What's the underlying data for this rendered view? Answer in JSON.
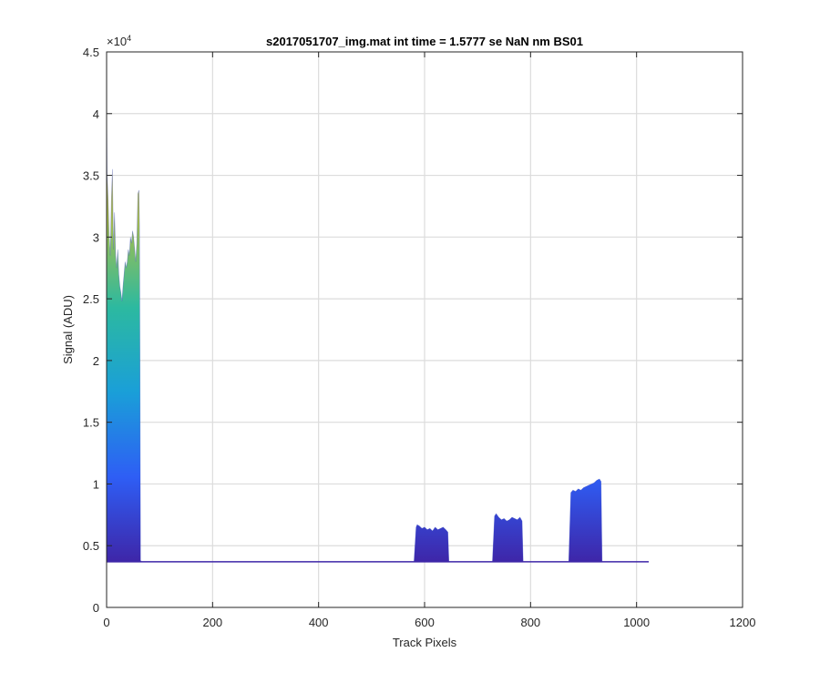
{
  "chart_data": {
    "type": "area",
    "title": "s2017051707_img.mat int time = 1.5777 se  NaN nm BS01",
    "xlabel": "Track Pixels",
    "ylabel": "Signal (ADU)",
    "xlim": [
      0,
      1200
    ],
    "ylim": [
      0,
      45000
    ],
    "x_ticks": [
      0,
      200,
      400,
      600,
      800,
      1000,
      1200
    ],
    "y_ticks": [
      0,
      5000,
      10000,
      15000,
      20000,
      25000,
      30000,
      35000,
      40000,
      45000
    ],
    "x_tick_labels": [
      "0",
      "200",
      "400",
      "600",
      "800",
      "1000",
      "1200"
    ],
    "y_tick_labels": [
      "0",
      "0.5",
      "1",
      "1.5",
      "2",
      "2.5",
      "3",
      "3.5",
      "4",
      "4.5"
    ],
    "y_exponent_label": "×10",
    "y_exponent_power": "4",
    "grid": true,
    "colormap": [
      "#3e26a8",
      "#2e5ef5",
      "#1a9fd8",
      "#2cb9a0",
      "#a5be4c",
      "#dbbb3a"
    ],
    "series": [
      {
        "x": [
          0,
          1,
          3,
          5,
          7,
          9,
          11,
          13,
          15,
          17,
          19,
          21,
          23,
          25,
          27,
          29,
          31,
          33,
          35,
          37,
          39,
          41,
          43,
          45,
          47,
          49,
          51,
          53,
          55,
          57,
          59,
          61,
          62,
          63,
          64,
          66,
          70,
          100,
          200,
          300,
          400,
          500,
          580,
          584,
          586,
          590,
          595,
          600,
          605,
          610,
          615,
          620,
          625,
          630,
          635,
          640,
          644,
          646,
          650,
          700,
          728,
          732,
          735,
          740,
          745,
          750,
          755,
          760,
          765,
          770,
          775,
          780,
          784,
          786,
          790,
          850,
          872,
          876,
          880,
          885,
          890,
          895,
          900,
          905,
          910,
          915,
          920,
          925,
          930,
          933,
          935,
          940,
          1000,
          1023
        ],
        "y": [
          41000,
          35000,
          33000,
          30000,
          28500,
          33000,
          35500,
          29000,
          32000,
          28500,
          27500,
          29000,
          27000,
          26000,
          25500,
          24800,
          26000,
          27000,
          28000,
          27500,
          28000,
          29000,
          28500,
          30000,
          29500,
          30500,
          30000,
          29000,
          28000,
          29500,
          33500,
          33800,
          31000,
          20000,
          3800,
          3700,
          3700,
          3700,
          3700,
          3700,
          3700,
          3700,
          3700,
          6500,
          6700,
          6600,
          6400,
          6500,
          6300,
          6400,
          6200,
          6500,
          6300,
          6400,
          6500,
          6300,
          6100,
          3700,
          3700,
          3700,
          3700,
          7400,
          7600,
          7300,
          7100,
          7200,
          7000,
          7100,
          7300,
          7200,
          7100,
          7300,
          7000,
          3700,
          3700,
          3700,
          3700,
          9300,
          9500,
          9400,
          9600,
          9500,
          9700,
          9800,
          9900,
          10000,
          10100,
          10300,
          10400,
          10200,
          3700,
          3700,
          3700,
          3700
        ]
      }
    ]
  }
}
